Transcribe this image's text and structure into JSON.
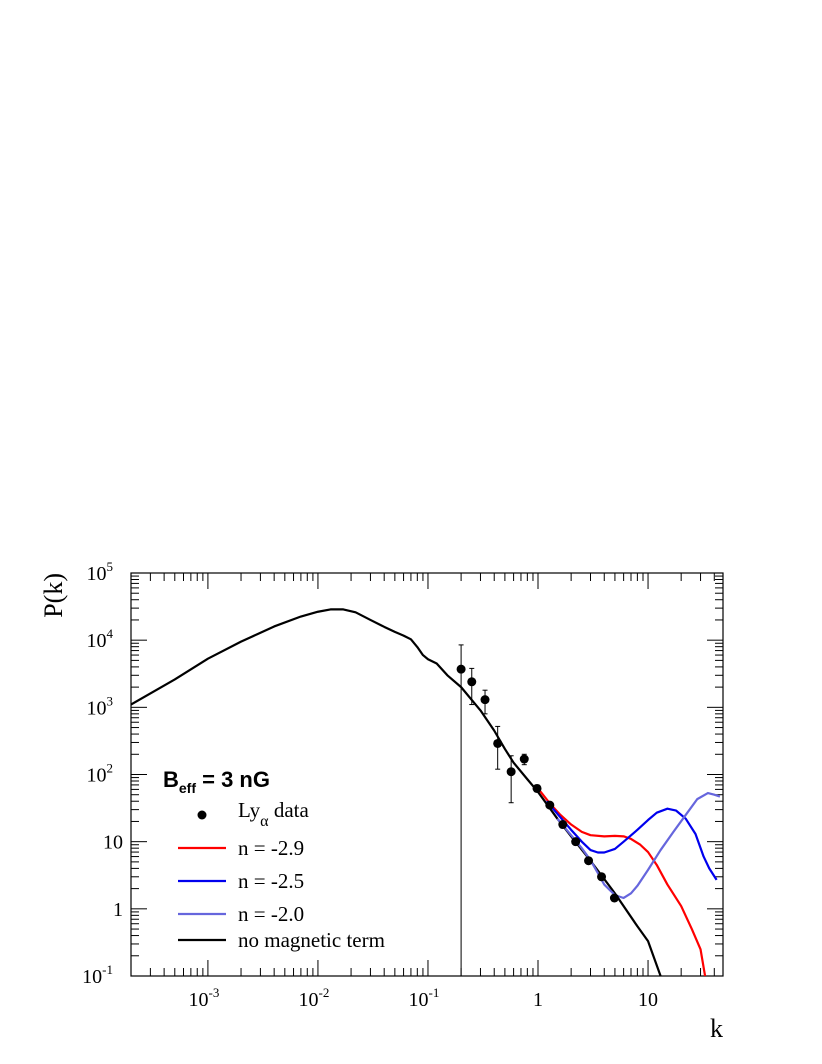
{
  "chart_data": {
    "type": "line",
    "xlabel": "k",
    "ylabel": "P(k)",
    "xscale": "log",
    "yscale": "log",
    "xlim": [
      0.0002,
      48
    ],
    "ylim": [
      0.1,
      100000
    ],
    "x_tick_labels": [
      {
        "value": 0.001,
        "base": "10",
        "exp": "-3"
      },
      {
        "value": 0.01,
        "base": "10",
        "exp": "-2"
      },
      {
        "value": 0.1,
        "base": "10",
        "exp": "-1"
      },
      {
        "value": 1,
        "base": "1",
        "exp": ""
      },
      {
        "value": 10,
        "base": "10",
        "exp": ""
      }
    ],
    "y_tick_labels": [
      {
        "value": 0.1,
        "base": "10",
        "exp": "-1"
      },
      {
        "value": 1,
        "base": "1",
        "exp": ""
      },
      {
        "value": 10,
        "base": "10",
        "exp": ""
      },
      {
        "value": 100,
        "base": "10",
        "exp": "2"
      },
      {
        "value": 1000,
        "base": "10",
        "exp": "3"
      },
      {
        "value": 10000,
        "base": "10",
        "exp": "4"
      },
      {
        "value": 100000,
        "base": "10",
        "exp": "5"
      }
    ],
    "legend": {
      "title_main": "B",
      "title_sub": "eff",
      "title_rest": " = 3 nG",
      "placement": "bottom-left",
      "entries": [
        {
          "kind": "marker",
          "label_main": "Ly",
          "label_sub": "α",
          "label_rest": " data"
        },
        {
          "kind": "line",
          "color": "#ff0000",
          "label": "n = -2.9"
        },
        {
          "kind": "line",
          "color": "#0000ee",
          "label": "n = -2.5"
        },
        {
          "kind": "line",
          "color": "#6666dd",
          "label": "n = -2.0"
        },
        {
          "kind": "line",
          "color": "#000000",
          "label": "no magnetic term"
        }
      ]
    },
    "series": [
      {
        "kind": "line",
        "color": "#000000",
        "points": [
          [
            0.0002,
            1100
          ],
          [
            0.0005,
            2600
          ],
          [
            0.001,
            5300
          ],
          [
            0.002,
            9500
          ],
          [
            0.004,
            16000
          ],
          [
            0.007,
            22500
          ],
          [
            0.01,
            26500
          ],
          [
            0.013,
            28700
          ],
          [
            0.017,
            28700
          ],
          [
            0.022,
            26000
          ],
          [
            0.03,
            20000
          ],
          [
            0.04,
            15800
          ],
          [
            0.05,
            13300
          ],
          [
            0.06,
            11700
          ],
          [
            0.07,
            10300
          ],
          [
            0.08,
            7900
          ],
          [
            0.09,
            6000
          ],
          [
            0.1,
            5200
          ],
          [
            0.12,
            4500
          ],
          [
            0.15,
            3000
          ],
          [
            0.2,
            2000
          ],
          [
            0.3,
            900
          ],
          [
            0.4,
            450
          ],
          [
            0.5,
            240
          ],
          [
            0.6,
            150
          ],
          [
            0.8,
            85
          ],
          [
            1.0,
            55
          ],
          [
            1.5,
            22
          ],
          [
            2.0,
            12
          ],
          [
            3.0,
            5.2
          ],
          [
            5.0,
            1.7
          ],
          [
            8.0,
            0.55
          ],
          [
            10,
            0.33
          ],
          [
            13,
            0.1
          ]
        ]
      },
      {
        "kind": "line",
        "color": "#ff0000",
        "points": [
          [
            1.0,
            62
          ],
          [
            1.3,
            36
          ],
          [
            1.6,
            25
          ],
          [
            2.0,
            18
          ],
          [
            2.5,
            14
          ],
          [
            3.0,
            12.5
          ],
          [
            4.0,
            12
          ],
          [
            5.0,
            12.2
          ],
          [
            6.0,
            12
          ],
          [
            7.0,
            11
          ],
          [
            8.5,
            9
          ],
          [
            10,
            7
          ],
          [
            12,
            4.5
          ],
          [
            15,
            2.3
          ],
          [
            20,
            1.1
          ],
          [
            25,
            0.5
          ],
          [
            30,
            0.25
          ],
          [
            33,
            0.1
          ]
        ]
      },
      {
        "kind": "line",
        "color": "#0000ee",
        "points": [
          [
            1.2,
            40
          ],
          [
            1.5,
            26
          ],
          [
            2.0,
            15
          ],
          [
            2.5,
            10
          ],
          [
            3.0,
            7.5
          ],
          [
            3.5,
            6.9
          ],
          [
            4.0,
            6.9
          ],
          [
            5.0,
            7.8
          ],
          [
            6.0,
            10
          ],
          [
            8.0,
            15
          ],
          [
            10,
            21
          ],
          [
            12,
            27
          ],
          [
            15,
            31
          ],
          [
            18,
            29
          ],
          [
            22,
            22
          ],
          [
            27,
            13
          ],
          [
            32,
            6
          ],
          [
            36,
            4
          ],
          [
            42,
            2.7
          ]
        ]
      },
      {
        "kind": "line",
        "color": "#6666dd",
        "points": [
          [
            1.5,
            22
          ],
          [
            2.0,
            12.5
          ],
          [
            2.5,
            8
          ],
          [
            3.0,
            5.3
          ],
          [
            3.5,
            3.4
          ],
          [
            4.0,
            2.3
          ],
          [
            5.0,
            1.6
          ],
          [
            6.0,
            1.45
          ],
          [
            7.0,
            1.7
          ],
          [
            8.0,
            2.2
          ],
          [
            10,
            3.8
          ],
          [
            13,
            7.5
          ],
          [
            17,
            14
          ],
          [
            22,
            25
          ],
          [
            28,
            43
          ],
          [
            35,
            53
          ],
          [
            40,
            50
          ],
          [
            45,
            47
          ]
        ]
      }
    ],
    "data_points": {
      "label": "Lyα data",
      "points": [
        {
          "x": 0.2,
          "y": 3700,
          "ylo": 0.1,
          "yhi": 8500
        },
        {
          "x": 0.25,
          "y": 2400,
          "ylo": 1100,
          "yhi": 3800
        },
        {
          "x": 0.33,
          "y": 1300,
          "ylo": 800,
          "yhi": 1800
        },
        {
          "x": 0.43,
          "y": 290,
          "ylo": 120,
          "yhi": 520
        },
        {
          "x": 0.57,
          "y": 110,
          "ylo": 38,
          "yhi": 190
        },
        {
          "x": 0.75,
          "y": 170,
          "ylo": 140,
          "yhi": 200
        },
        {
          "x": 0.98,
          "y": 62,
          "ylo": 55,
          "yhi": 70
        },
        {
          "x": 1.28,
          "y": 35,
          "ylo": 32,
          "yhi": 38
        },
        {
          "x": 1.68,
          "y": 18,
          "ylo": 16,
          "yhi": 20
        },
        {
          "x": 2.2,
          "y": 10,
          "ylo": 9,
          "yhi": 11
        },
        {
          "x": 2.88,
          "y": 5.2,
          "ylo": 4.7,
          "yhi": 5.7
        },
        {
          "x": 3.78,
          "y": 3.0,
          "ylo": 2.7,
          "yhi": 3.3
        },
        {
          "x": 4.95,
          "y": 1.45,
          "ylo": 1.3,
          "yhi": 1.6
        }
      ]
    }
  }
}
